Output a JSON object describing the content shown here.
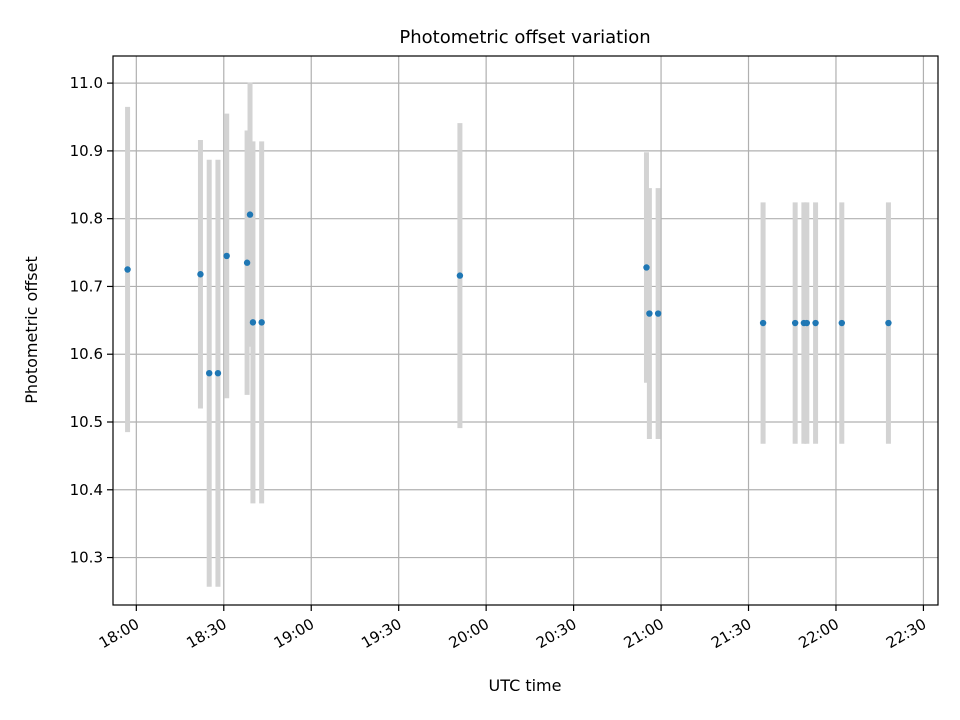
{
  "chart_data": {
    "type": "scatter",
    "title": "Photometric offset variation",
    "xlabel": "UTC time",
    "ylabel": "Photometric offset",
    "xlim": [
      "17:52",
      "22:35"
    ],
    "ylim": [
      10.23,
      11.04
    ],
    "grid": true,
    "x_ticks": [
      "18:00",
      "18:30",
      "19:00",
      "19:30",
      "20:00",
      "20:30",
      "21:00",
      "21:30",
      "22:00",
      "22:30"
    ],
    "y_ticks": [
      "10.3",
      "10.4",
      "10.5",
      "10.6",
      "10.7",
      "10.8",
      "10.9",
      "11.0"
    ],
    "colors": {
      "point": "#1f77b4",
      "errorbar": "#d3d3d3",
      "grid": "#b0b0b0"
    },
    "points": [
      {
        "x": "17:57",
        "y": 10.725,
        "err": 0.24
      },
      {
        "x": "18:22",
        "y": 10.718,
        "err": 0.198
      },
      {
        "x": "18:25",
        "y": 10.572,
        "err": 0.315
      },
      {
        "x": "18:28",
        "y": 10.572,
        "err": 0.315
      },
      {
        "x": "18:31",
        "y": 10.745,
        "err": 0.21
      },
      {
        "x": "18:38",
        "y": 10.735,
        "err": 0.195
      },
      {
        "x": "18:39",
        "y": 10.806,
        "err": 0.195
      },
      {
        "x": "18:40",
        "y": 10.647,
        "err": 0.267
      },
      {
        "x": "18:43",
        "y": 10.647,
        "err": 0.267
      },
      {
        "x": "19:51",
        "y": 10.716,
        "err": 0.225
      },
      {
        "x": "20:55",
        "y": 10.728,
        "err": 0.17
      },
      {
        "x": "20:56",
        "y": 10.66,
        "err": 0.185
      },
      {
        "x": "20:59",
        "y": 10.66,
        "err": 0.185
      },
      {
        "x": "21:35",
        "y": 10.646,
        "err": 0.178
      },
      {
        "x": "21:46",
        "y": 10.646,
        "err": 0.178
      },
      {
        "x": "21:49",
        "y": 10.646,
        "err": 0.178
      },
      {
        "x": "21:50",
        "y": 10.646,
        "err": 0.178
      },
      {
        "x": "21:53",
        "y": 10.646,
        "err": 0.178
      },
      {
        "x": "22:02",
        "y": 10.646,
        "err": 0.178
      },
      {
        "x": "22:18",
        "y": 10.646,
        "err": 0.178
      }
    ]
  }
}
